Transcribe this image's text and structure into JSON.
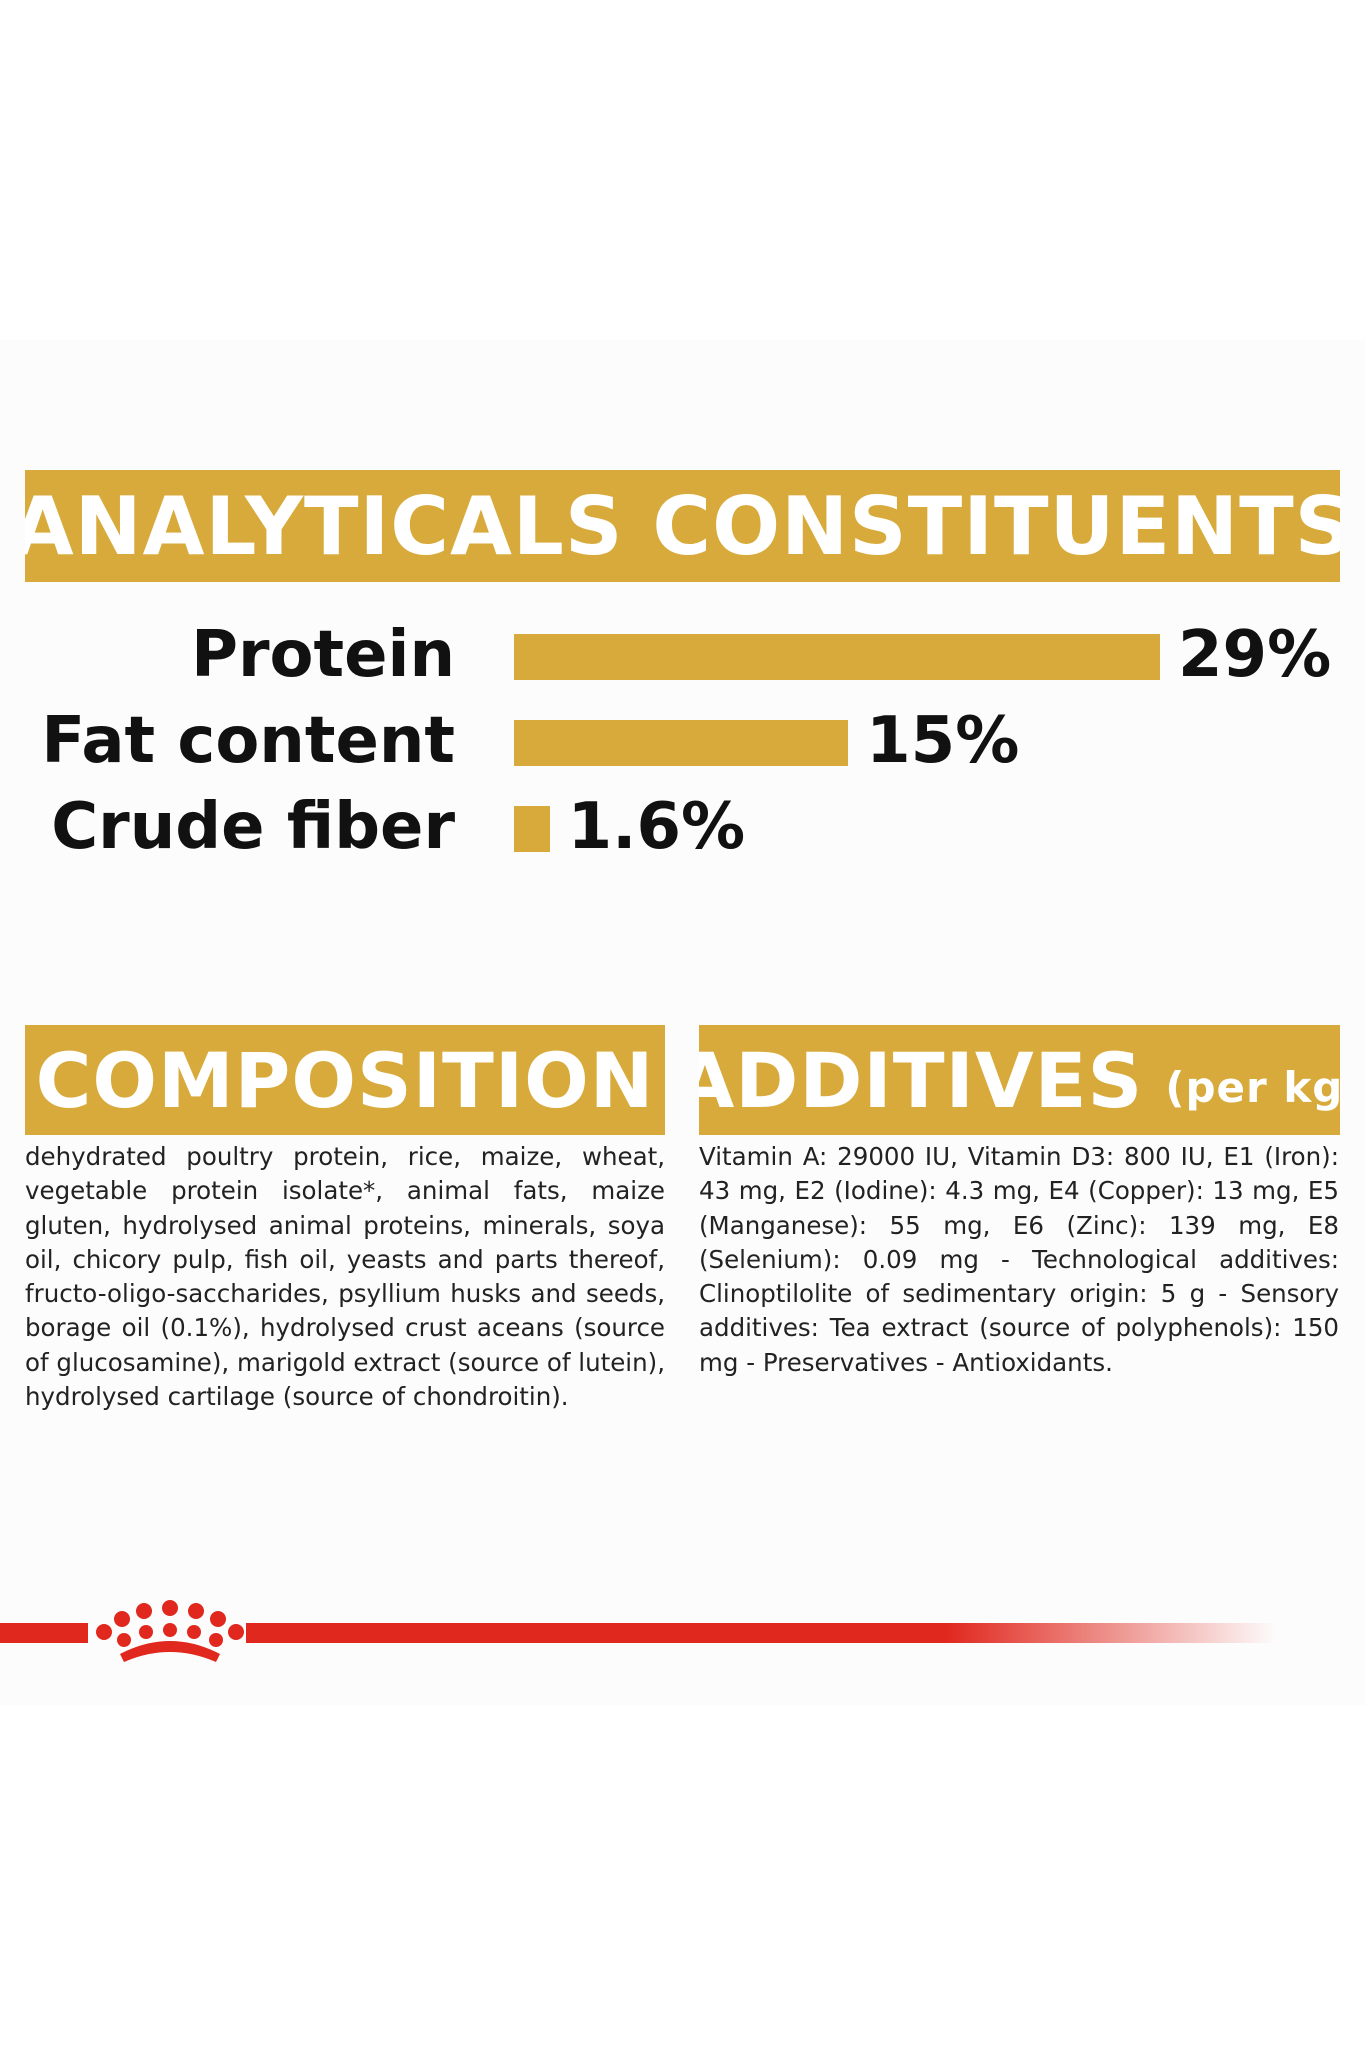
{
  "analytics": {
    "title": "ANALYTICALS CONSTITUENTS",
    "items": [
      {
        "label": "Protein",
        "value": 29,
        "value_text": "29%"
      },
      {
        "label": "Fat content",
        "value": 15,
        "value_text": "15%"
      },
      {
        "label": "Crude fiber",
        "value": 1.6,
        "value_text": "1.6%"
      }
    ]
  },
  "composition": {
    "title": "COMPOSITION",
    "text": "dehydrated poultry protein, rice, maize, wheat, vegetable protein isolate*, animal fats, maize gluten, hydrolysed animal proteins, minerals, soya oil, chicory pulp, fish oil, yeasts and parts thereof, fructo-oligo-saccharides, psyllium husks and seeds, borage oil (0.1%), hydrolysed crust aceans (source of glucosamine), marigold extract (source of lutein), hydrolysed cartilage (source of chondroitin)."
  },
  "additives": {
    "title": "ADDITIVES",
    "unit": "(per kg)",
    "text": "Vitamin A: 29000 IU, Vitamin D3: 800 IU, E1 (Iron): 43 mg, E2 (Iodine): 4.3 mg, E4 (Copper): 13 mg, E5 (Manganese): 55 mg, E6 (Zinc): 139 mg, E8 (Selenium): 0.09 mg - Technological additives: Clinoptilolite of sedimentary origin: 5 g - Sensory additives: Tea extract (source of polyphenols): 150 mg - Preservatives - Antioxidants."
  },
  "colors": {
    "accent": "#d8aa3b",
    "brand_red": "#e0281e"
  },
  "icons": {
    "logo": "royal-canin-crown-icon"
  }
}
